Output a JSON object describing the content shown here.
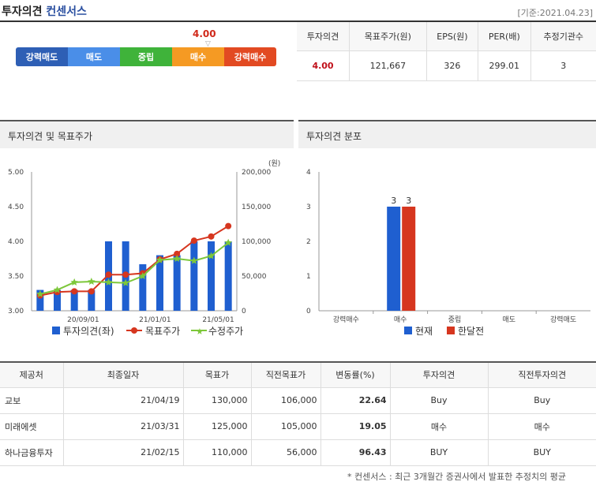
{
  "header": {
    "title": "투자의견",
    "subtitle": "컨센서스",
    "base_date": "[기준:2021.04.23]"
  },
  "opinion_scale": {
    "value": "4.00",
    "value_num": 4.0,
    "labels": [
      "강력매도",
      "매도",
      "중립",
      "매수",
      "강력매수"
    ],
    "colors": [
      "#2e5fb5",
      "#4a8ee8",
      "#3fb33a",
      "#f59a23",
      "#e24a22"
    ]
  },
  "summary": {
    "headers": [
      "투자의견",
      "목표주가(원)",
      "EPS(원)",
      "PER(배)",
      "추정기관수"
    ],
    "values": [
      "4.00",
      "121,667",
      "326",
      "299.01",
      "3"
    ]
  },
  "panels": {
    "left_title": "투자의견 및 목표주가",
    "right_title": "투자의견 분포"
  },
  "chart_data": [
    {
      "type": "bar",
      "title": "투자의견 및 목표주가",
      "x_ticks": [
        "20/09/01",
        "21/01/01",
        "21/05/01"
      ],
      "y_left_ticks": [
        "5.00",
        "4.50",
        "4.00",
        "3.50",
        "3.00"
      ],
      "y_left_range": [
        3.0,
        5.0
      ],
      "y_right_unit": "(원)",
      "y_right_ticks": [
        "200,000",
        "150,000",
        "100,000",
        "50,000",
        "0"
      ],
      "y_right_range": [
        0,
        200000
      ],
      "series": [
        {
          "name": "투자의견(좌)",
          "type": "bar",
          "axis": "left",
          "color": "#1f5fd0",
          "values": [
            3.3,
            3.3,
            3.3,
            3.3,
            4.0,
            4.0,
            3.67,
            3.8,
            3.8,
            4.0,
            4.0,
            4.0
          ]
        },
        {
          "name": "목표주가",
          "type": "line",
          "axis": "right",
          "color": "#d6361f",
          "values": [
            22000,
            27000,
            28000,
            28000,
            52000,
            52000,
            54000,
            74000,
            82000,
            101000,
            107000,
            122000
          ]
        },
        {
          "name": "수정주가",
          "type": "line",
          "axis": "right",
          "color": "#7dc73a",
          "values": [
            24000,
            30000,
            41000,
            42000,
            41000,
            40000,
            50000,
            73000,
            75000,
            72000,
            79000,
            98000
          ]
        }
      ]
    },
    {
      "type": "bar",
      "title": "투자의견 분포",
      "categories": [
        "강력매수",
        "매수",
        "중립",
        "매도",
        "강력매도"
      ],
      "y_range": [
        0,
        4
      ],
      "y_ticks": [
        "4",
        "3",
        "2",
        "1",
        "0"
      ],
      "series": [
        {
          "name": "현재",
          "color": "#1f5fd0",
          "values": [
            0,
            3,
            0,
            0,
            0
          ],
          "labels": [
            "",
            "3",
            "",
            "",
            ""
          ]
        },
        {
          "name": "한달전",
          "color": "#d6361f",
          "values": [
            0,
            3,
            0,
            0,
            0
          ],
          "labels": [
            "",
            "3",
            "",
            "",
            ""
          ]
        }
      ]
    }
  ],
  "detail_table": {
    "headers": [
      "제공처",
      "최종일자",
      "목표가",
      "직전목표가",
      "변동률(%)",
      "투자의견",
      "직전투자의견"
    ],
    "rows": [
      [
        "교보",
        "21/04/19",
        "130,000",
        "106,000",
        "22.64",
        "Buy",
        "Buy"
      ],
      [
        "미래에셋",
        "21/03/31",
        "125,000",
        "105,000",
        "19.05",
        "매수",
        "매수"
      ],
      [
        "하나금융투자",
        "21/02/15",
        "110,000",
        "56,000",
        "96.43",
        "BUY",
        "BUY"
      ]
    ]
  },
  "footnote": "* 컨센서스 : 최근 3개월간 증권사에서 발표한 추정치의 평균"
}
